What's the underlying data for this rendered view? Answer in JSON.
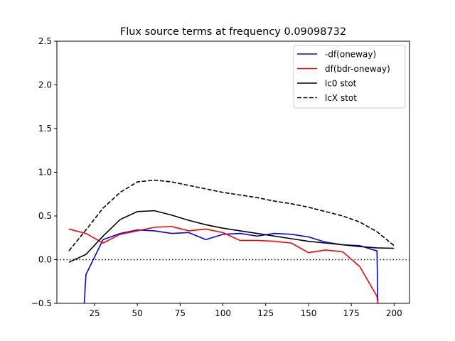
{
  "chart_data": {
    "type": "line",
    "title": "Flux source terms at frequency 0.09098732",
    "xlabel": "",
    "ylabel": "",
    "xlim": [
      3,
      209
    ],
    "ylim": [
      -0.5,
      2.5
    ],
    "xticks": [
      25,
      50,
      75,
      100,
      125,
      150,
      175,
      200
    ],
    "yticks": [
      -0.5,
      0.0,
      0.5,
      1.0,
      1.5,
      2.0,
      2.5
    ],
    "xtick_labels": [
      "25",
      "50",
      "75",
      "100",
      "125",
      "150",
      "175",
      "200"
    ],
    "ytick_labels": [
      "−0.5",
      "0.0",
      "0.5",
      "1.0",
      "1.5",
      "2.0",
      "2.5"
    ],
    "grid": false,
    "legend_position": "top-right",
    "reference_line": {
      "y": 0.0,
      "style": "dotted",
      "color": "#000000"
    },
    "series": [
      {
        "name": "-df(oneway)",
        "color": "#0000ff",
        "style": "solid",
        "x": [
          19,
          20,
          30,
          40,
          50,
          60,
          70,
          80,
          90,
          100,
          110,
          120,
          130,
          140,
          150,
          160,
          170,
          180,
          190,
          190.5
        ],
        "y": [
          -0.5,
          -0.17,
          0.23,
          0.3,
          0.34,
          0.33,
          0.3,
          0.31,
          0.23,
          0.29,
          0.3,
          0.27,
          0.3,
          0.29,
          0.26,
          0.2,
          0.17,
          0.16,
          0.1,
          -0.5
        ]
      },
      {
        "name": "df(bdr-oneway)",
        "color": "#ff0000",
        "style": "solid",
        "x": [
          10,
          20,
          30,
          40,
          50,
          60,
          70,
          80,
          90,
          100,
          110,
          120,
          130,
          140,
          150,
          160,
          170,
          180,
          190,
          190.5
        ],
        "y": [
          0.35,
          0.3,
          0.19,
          0.29,
          0.33,
          0.37,
          0.38,
          0.33,
          0.35,
          0.31,
          0.22,
          0.22,
          0.21,
          0.19,
          0.08,
          0.11,
          0.09,
          -0.08,
          -0.42,
          -0.5
        ]
      },
      {
        "name": "lc0 stot",
        "color": "#000000",
        "style": "solid",
        "x": [
          10,
          20,
          30,
          40,
          50,
          60,
          70,
          80,
          90,
          100,
          110,
          120,
          130,
          140,
          150,
          160,
          170,
          180,
          190,
          200
        ],
        "y": [
          -0.03,
          0.06,
          0.27,
          0.46,
          0.55,
          0.56,
          0.51,
          0.45,
          0.4,
          0.36,
          0.33,
          0.3,
          0.27,
          0.24,
          0.21,
          0.19,
          0.17,
          0.15,
          0.135,
          0.13
        ]
      },
      {
        "name": "lcX stot",
        "color": "#000000",
        "style": "dashed",
        "x": [
          10,
          20,
          30,
          40,
          50,
          60,
          70,
          80,
          90,
          100,
          110,
          120,
          130,
          140,
          150,
          160,
          170,
          180,
          190,
          200
        ],
        "y": [
          0.1,
          0.34,
          0.59,
          0.77,
          0.89,
          0.91,
          0.89,
          0.85,
          0.81,
          0.77,
          0.74,
          0.71,
          0.67,
          0.64,
          0.6,
          0.55,
          0.5,
          0.43,
          0.32,
          0.16
        ]
      }
    ]
  }
}
